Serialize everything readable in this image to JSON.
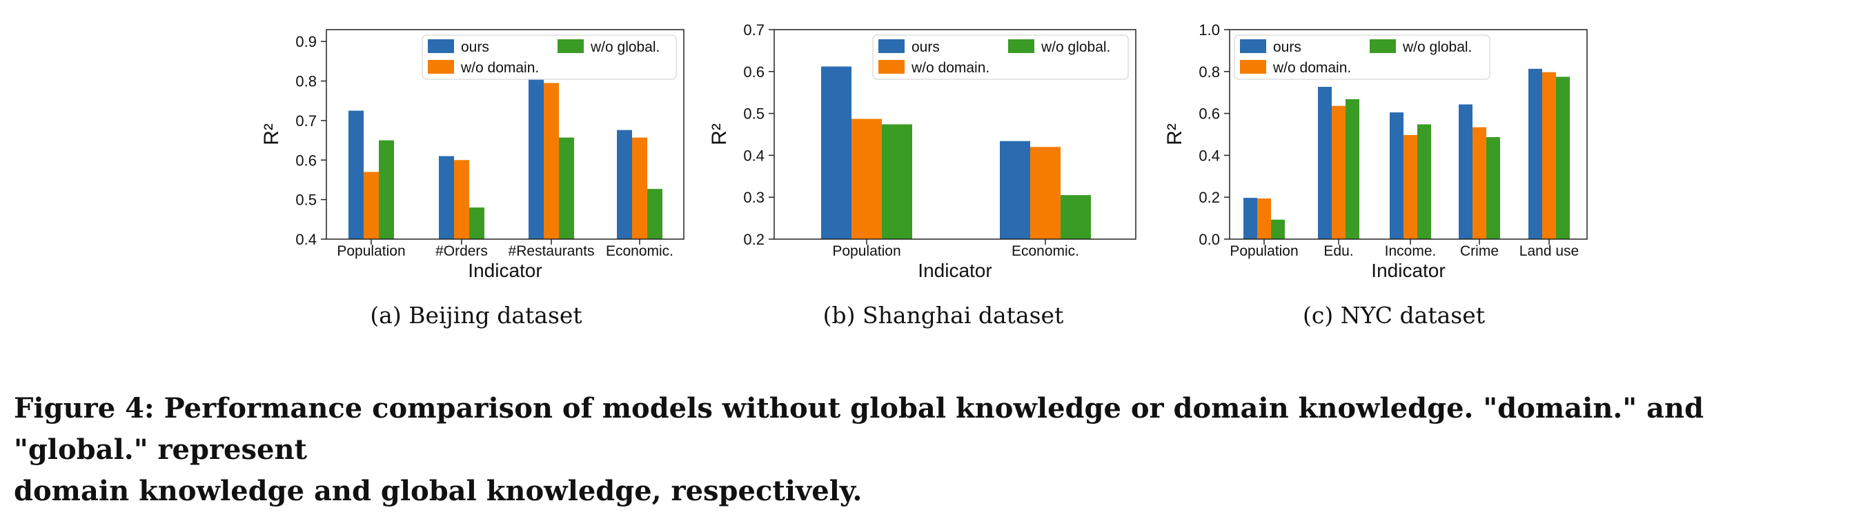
{
  "colors": {
    "ours": "#2b6cb0",
    "wo_domain": "#f57c00",
    "wo_global": "#3a9c24"
  },
  "chart_data": [
    {
      "type": "bar",
      "subcaption": "(a)  Beijing dataset",
      "categories": [
        "Population",
        "#Orders",
        "#Restaurants",
        "Economic."
      ],
      "series": [
        {
          "name": "ours",
          "values": [
            0.725,
            0.61,
            0.805,
            0.676
          ]
        },
        {
          "name": "w/o domain.",
          "values": [
            0.57,
            0.6,
            0.795,
            0.657
          ]
        },
        {
          "name": "w/o global.",
          "values": [
            0.65,
            0.48,
            0.657,
            0.527
          ]
        }
      ],
      "xlabel": "Indicator",
      "ylabel": "R²",
      "ylim": [
        0.4,
        0.93
      ],
      "yticks": [
        "0.4",
        "0.5",
        "0.6",
        "0.7",
        "0.8",
        "0.9"
      ],
      "legend": "top-right",
      "grid": false
    },
    {
      "type": "bar",
      "subcaption": "(b)  Shanghai dataset",
      "categories": [
        "Population",
        "Economic."
      ],
      "series": [
        {
          "name": "ours",
          "values": [
            0.612,
            0.434
          ]
        },
        {
          "name": "w/o domain.",
          "values": [
            0.487,
            0.42
          ]
        },
        {
          "name": "w/o global.",
          "values": [
            0.474,
            0.305
          ]
        }
      ],
      "xlabel": "Indicator",
      "ylabel": "R²",
      "ylim": [
        0.2,
        0.7
      ],
      "yticks": [
        "0.2",
        "0.3",
        "0.4",
        "0.5",
        "0.6",
        "0.7"
      ],
      "legend": "top-right",
      "grid": false
    },
    {
      "type": "bar",
      "subcaption": "(c)  NYC dataset",
      "categories": [
        "Population",
        "Edu.",
        "Income.",
        "Crime",
        "Land use"
      ],
      "series": [
        {
          "name": "ours",
          "values": [
            0.197,
            0.727,
            0.605,
            0.643,
            0.813
          ]
        },
        {
          "name": "w/o domain.",
          "values": [
            0.194,
            0.636,
            0.497,
            0.534,
            0.797
          ]
        },
        {
          "name": "w/o global.",
          "values": [
            0.093,
            0.668,
            0.548,
            0.487,
            0.775
          ]
        }
      ],
      "xlabel": "Indicator",
      "ylabel": "R²",
      "ylim": [
        0.0,
        1.0
      ],
      "yticks": [
        "0.0",
        "0.2",
        "0.4",
        "0.6",
        "0.8",
        "1.0"
      ],
      "legend": "top-left",
      "grid": false
    }
  ],
  "figure": {
    "caption_line1": "Figure 4: Performance comparison of models without global knowledge or domain knowledge. \"domain.\" and \"global.\" represent",
    "caption_line2": "domain knowledge and global knowledge, respectively."
  }
}
